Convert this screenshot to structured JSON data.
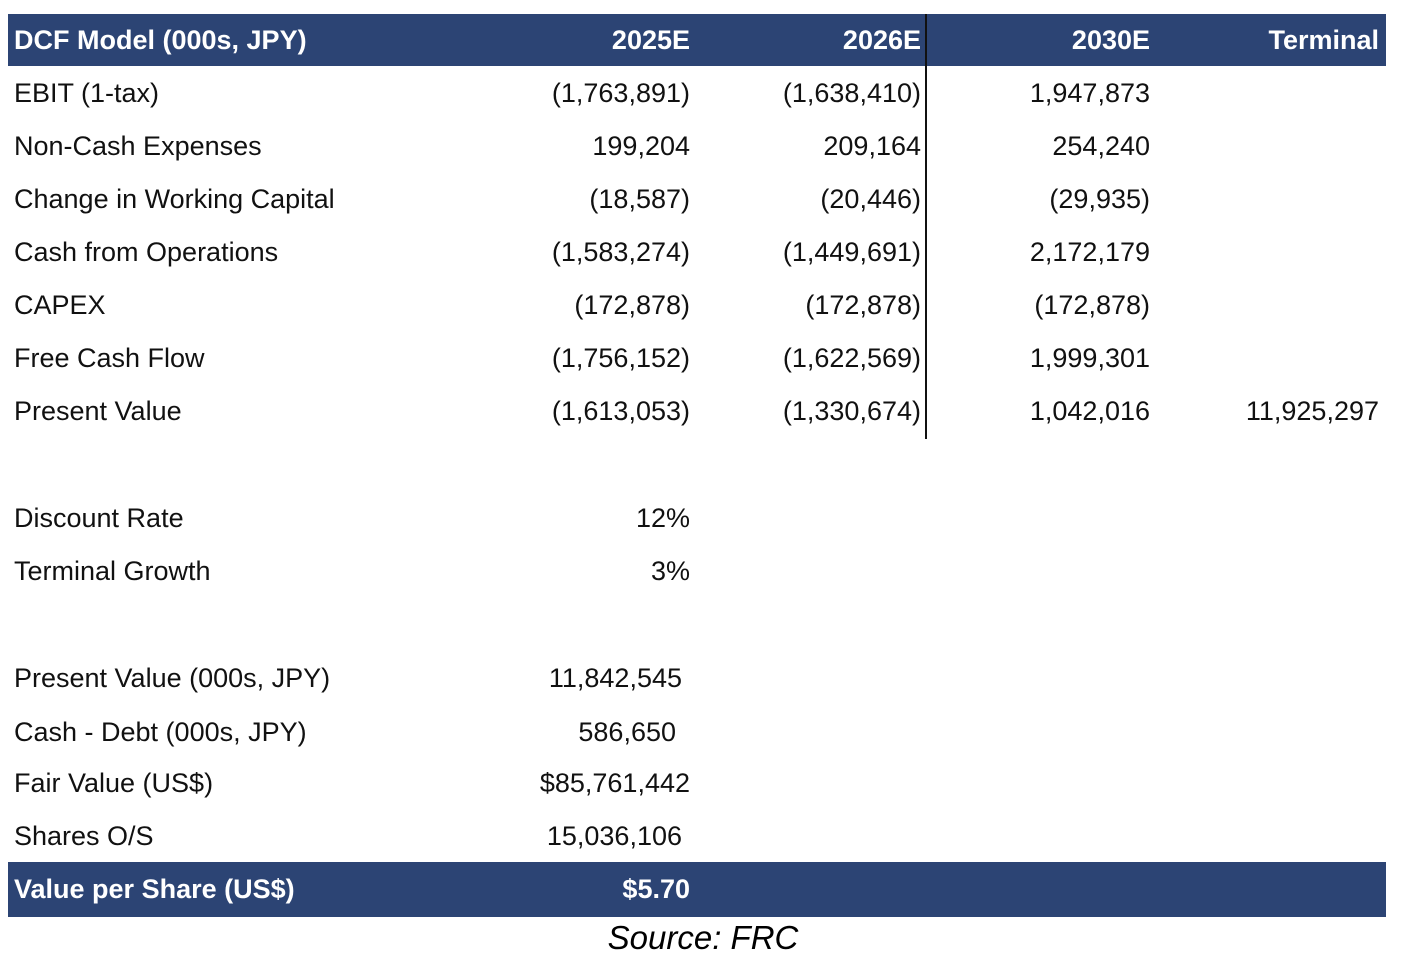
{
  "header": {
    "title": "DCF Model (000s, JPY)",
    "columns": [
      "2025E",
      "2026E",
      "2030E",
      "Terminal"
    ]
  },
  "rows": [
    {
      "label": "EBIT (1-tax)",
      "values": [
        "(1,763,891)",
        "(1,638,410)",
        "1,947,873",
        ""
      ]
    },
    {
      "label": "Non-Cash Expenses",
      "values": [
        "199,204",
        "209,164",
        "254,240",
        ""
      ]
    },
    {
      "label": "Change in Working Capital",
      "values": [
        "(18,587)",
        "(20,446)",
        "(29,935)",
        ""
      ]
    },
    {
      "label": "Cash from Operations",
      "values": [
        "(1,583,274)",
        "(1,449,691)",
        "2,172,179",
        ""
      ]
    },
    {
      "label": "CAPEX",
      "values": [
        "(172,878)",
        "(172,878)",
        "(172,878)",
        ""
      ]
    },
    {
      "label": "Free Cash Flow",
      "values": [
        "(1,756,152)",
        "(1,622,569)",
        "1,999,301",
        ""
      ]
    },
    {
      "label": "Present Value",
      "values": [
        "(1,613,053)",
        "(1,330,674)",
        "1,042,016",
        "11,925,297"
      ]
    }
  ],
  "assumptions": [
    {
      "label": "Discount Rate",
      "value": "12%"
    },
    {
      "label": "Terminal Growth",
      "value": "3%"
    }
  ],
  "valuation": [
    {
      "label": "Present Value (000s, JPY)",
      "value": "11,842,545"
    },
    {
      "label": "Cash - Debt (000s, JPY)",
      "value": "586,650"
    },
    {
      "label": "Fair Value (US$)",
      "value": "$85,761,442"
    },
    {
      "label": "Shares O/S",
      "value": "15,036,106"
    }
  ],
  "result": {
    "label": "Value per Share (US$)",
    "value": "$5.70"
  },
  "source": "Source: FRC",
  "colors": {
    "header_band": "#2c4474",
    "header_text": "#ffffff",
    "body_text": "#111111"
  }
}
